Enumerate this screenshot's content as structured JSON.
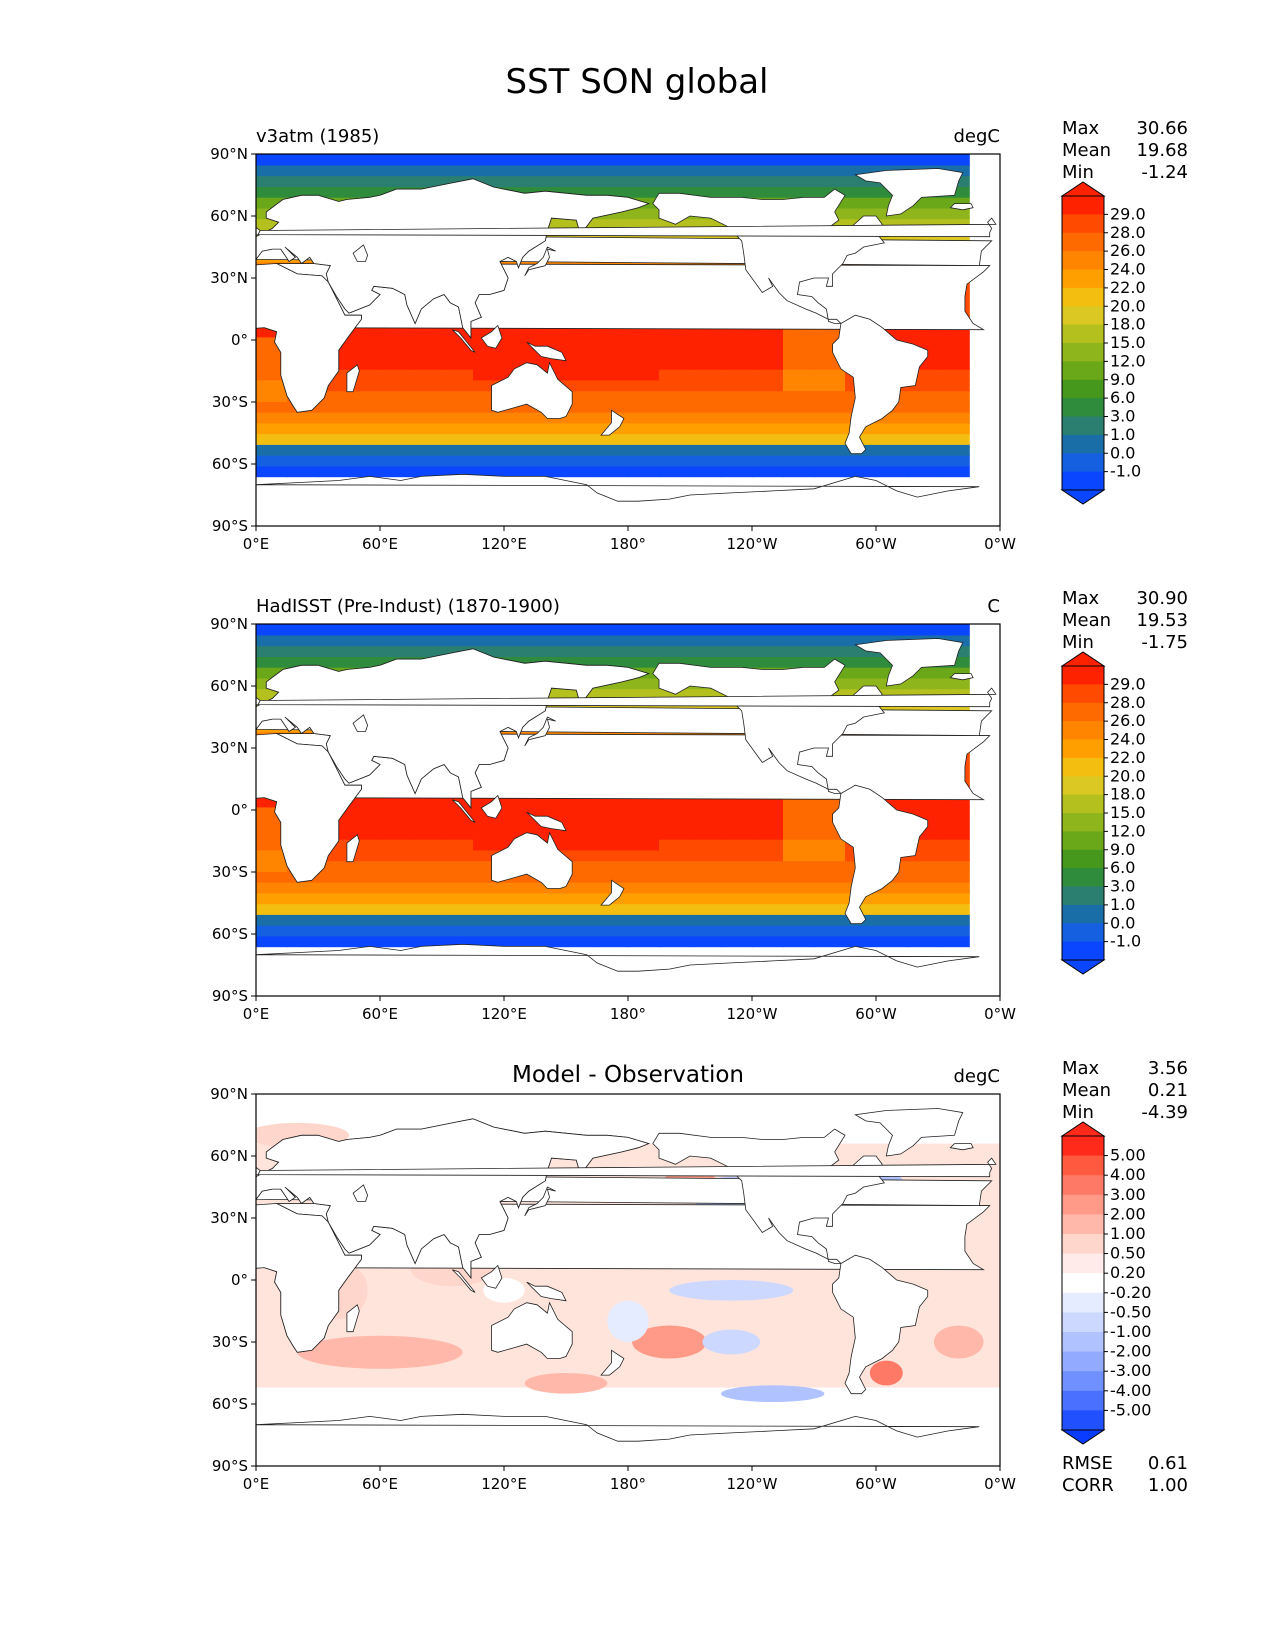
{
  "figure": {
    "title": "SST SON global"
  },
  "axes": {
    "lat_ticks": [
      "90°N",
      "60°N",
      "30°N",
      "0°",
      "30°S",
      "60°S",
      "90°S"
    ],
    "lon_ticks": [
      "0°E",
      "60°E",
      "120°E",
      "180°",
      "120°W",
      "60°W",
      "0°W"
    ]
  },
  "panels": [
    {
      "left_title": "v3atm (1985)",
      "center_title": "",
      "units": "degC",
      "stats": [
        {
          "label": "Max",
          "value": "30.66"
        },
        {
          "label": "Mean",
          "value": "19.68"
        },
        {
          "label": "Min",
          "value": "-1.24"
        }
      ],
      "extra_stats": [],
      "colorbar": {
        "labels": [
          "29.0",
          "28.0",
          "26.0",
          "24.0",
          "22.0",
          "20.0",
          "18.0",
          "15.0",
          "12.0",
          "9.0",
          "6.0",
          "3.0",
          "1.0",
          "0.0",
          "-1.0"
        ],
        "colors": [
          "#ff2200",
          "#ff4a00",
          "#ff6a00",
          "#ff8400",
          "#ffa000",
          "#f4be10",
          "#dcc823",
          "#b4c01e",
          "#8fb51c",
          "#6aa81a",
          "#46981c",
          "#2e8c3c",
          "#2a7f70",
          "#1a6ea8",
          "#1560e0",
          "#0a46ff"
        ],
        "over_color": "#ff2200",
        "under_color": "#0a46ff"
      }
    },
    {
      "left_title": "HadISST (Pre-Indust) (1870-1900)",
      "center_title": "",
      "units": "C",
      "stats": [
        {
          "label": "Max",
          "value": "30.90"
        },
        {
          "label": "Mean",
          "value": "19.53"
        },
        {
          "label": "Min",
          "value": "-1.75"
        }
      ],
      "extra_stats": [],
      "colorbar": {
        "labels": [
          "29.0",
          "28.0",
          "26.0",
          "24.0",
          "22.0",
          "20.0",
          "18.0",
          "15.0",
          "12.0",
          "9.0",
          "6.0",
          "3.0",
          "1.0",
          "0.0",
          "-1.0"
        ],
        "colors": [
          "#ff2200",
          "#ff4a00",
          "#ff6a00",
          "#ff8400",
          "#ffa000",
          "#f4be10",
          "#dcc823",
          "#b4c01e",
          "#8fb51c",
          "#6aa81a",
          "#46981c",
          "#2e8c3c",
          "#2a7f70",
          "#1a6ea8",
          "#1560e0",
          "#0a46ff"
        ],
        "over_color": "#ff2200",
        "under_color": "#0a46ff"
      }
    },
    {
      "left_title": "",
      "center_title": "Model - Observation",
      "units": "degC",
      "stats": [
        {
          "label": "Max",
          "value": "3.56"
        },
        {
          "label": "Mean",
          "value": "0.21"
        },
        {
          "label": "Min",
          "value": "-4.39"
        }
      ],
      "extra_stats": [
        {
          "label": "RMSE",
          "value": "0.61"
        },
        {
          "label": "CORR",
          "value": "1.00"
        }
      ],
      "colorbar": {
        "labels": [
          "5.00",
          "4.00",
          "3.00",
          "2.00",
          "1.00",
          "0.50",
          "0.20",
          "-0.20",
          "-0.50",
          "-1.00",
          "-2.00",
          "-3.00",
          "-4.00",
          "-5.00"
        ],
        "colors": [
          "#ff2a1a",
          "#ff5a40",
          "#ff7a66",
          "#ff9a88",
          "#ffb8aa",
          "#ffd6cc",
          "#ffecea",
          "#ffffff",
          "#e6ecff",
          "#ccd8ff",
          "#b0c2ff",
          "#92aaff",
          "#7090ff",
          "#4a70ff",
          "#2050ff"
        ],
        "over_color": "#ff2a1a",
        "under_color": "#0a3cff"
      }
    }
  ]
}
